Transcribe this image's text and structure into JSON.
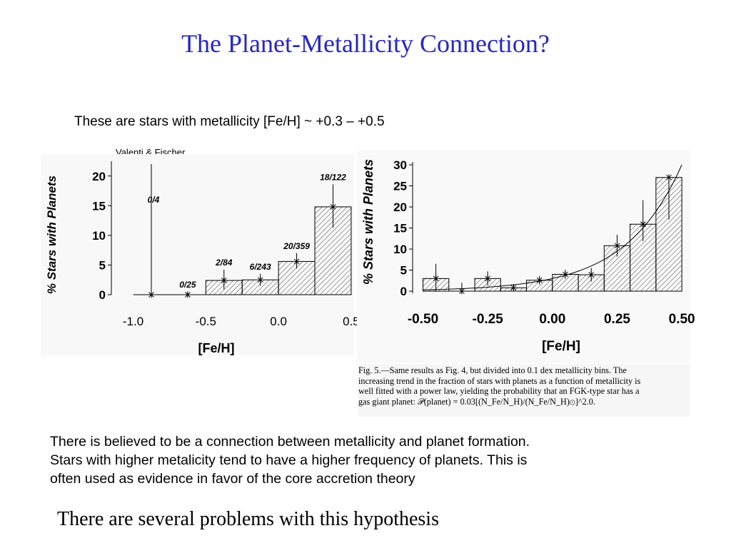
{
  "slide": {
    "title": "The Planet-Metallicity Connection?",
    "subtitle": "These are stars with metallicity [Fe/H] ~ +0.3 – +0.5",
    "source": "Valenti & Fischer",
    "body_lines": [
      "There is believed to be a connection between metallicity and planet formation.",
      "Stars with higher metalicity tend to have a higher frequency of planets. This is",
      "often used as evidence in favor of the core accretion theory"
    ],
    "closing": "There are several problems with this hypothesis",
    "caption_lines": [
      "Fig. 5.—Same results as Fig. 4, but divided into 0.1 dex metallicity bins. The",
      "increasing trend in the fraction of stars with planets as a function of metallicity is",
      "well fitted with a power law, yielding the probability that an FGK-type star has a",
      "gas giant planet: 𝒫(planet) = 0.03[(N_Fe/N_H)/(N_Fe/N_H)⊙]^2.0."
    ],
    "colors": {
      "title": "#2626c8",
      "text": "#000000"
    }
  },
  "chart_data": [
    {
      "type": "bar",
      "xlabel": "[Fe/H]",
      "ylabel": "% Stars with Planets",
      "xlim": [
        -1.15,
        0.52
      ],
      "ylim": [
        0,
        22
      ],
      "xticks": [
        "-1.0",
        "-0.5",
        "0.0",
        "0.5"
      ],
      "xtick_values": [
        -1.0,
        -0.5,
        0.0,
        0.5
      ],
      "yticks": [
        "0",
        "5",
        "10",
        "15",
        "20"
      ],
      "ytick_values": [
        0,
        5,
        10,
        15,
        20
      ],
      "bins": [
        {
          "x0": -1.0,
          "x1": -0.75,
          "value": 0.0,
          "err_lo": 0,
          "err_hi": 22,
          "label": "0/4"
        },
        {
          "x0": -0.75,
          "x1": -0.5,
          "value": 0.0,
          "err_lo": 0,
          "err_hi": 0.5,
          "label": "0/25"
        },
        {
          "x0": -0.5,
          "x1": -0.25,
          "value": 2.4,
          "err_lo": 1.5,
          "err_hi": 1.8,
          "label": "2/84"
        },
        {
          "x0": -0.25,
          "x1": 0.0,
          "value": 2.5,
          "err_lo": 1.0,
          "err_hi": 1.0,
          "label": "6/243"
        },
        {
          "x0": 0.0,
          "x1": 0.25,
          "value": 5.6,
          "err_lo": 1.2,
          "err_hi": 1.4,
          "label": "20/359"
        },
        {
          "x0": 0.25,
          "x1": 0.5,
          "value": 14.8,
          "err_lo": 3.5,
          "err_hi": 3.8,
          "label": "18/122"
        }
      ]
    },
    {
      "type": "bar",
      "xlabel": "[Fe/H]",
      "ylabel": "% Stars with Planets",
      "xlim": [
        -0.54,
        0.53
      ],
      "ylim": [
        -0.5,
        30
      ],
      "xticks": [
        "-0.50",
        "-0.25",
        "0.00",
        "0.25",
        "0.50"
      ],
      "xtick_values": [
        -0.5,
        -0.25,
        0.0,
        0.25,
        0.5
      ],
      "yticks": [
        "0",
        "5",
        "10",
        "15",
        "20",
        "25",
        "30"
      ],
      "ytick_values": [
        0,
        5,
        10,
        15,
        20,
        25,
        30
      ],
      "bins": [
        {
          "x0": -0.5,
          "x1": -0.4,
          "value": 3.0,
          "err_lo": 3.0,
          "err_hi": 3.5
        },
        {
          "x0": -0.4,
          "x1": -0.3,
          "value": 0.0,
          "err_lo": 0,
          "err_hi": 2.0
        },
        {
          "x0": -0.3,
          "x1": -0.2,
          "value": 3.0,
          "err_lo": 1.7,
          "err_hi": 1.7
        },
        {
          "x0": -0.2,
          "x1": -0.1,
          "value": 0.8,
          "err_lo": 0.6,
          "err_hi": 0.9
        },
        {
          "x0": -0.1,
          "x1": 0.0,
          "value": 2.6,
          "err_lo": 1.0,
          "err_hi": 1.0
        },
        {
          "x0": 0.0,
          "x1": 0.1,
          "value": 4.0,
          "err_lo": 1.1,
          "err_hi": 1.1
        },
        {
          "x0": 0.1,
          "x1": 0.2,
          "value": 3.9,
          "err_lo": 1.6,
          "err_hi": 1.6
        },
        {
          "x0": 0.2,
          "x1": 0.3,
          "value": 10.8,
          "err_lo": 2.6,
          "err_hi": 2.6
        },
        {
          "x0": 0.3,
          "x1": 0.4,
          "value": 15.9,
          "err_lo": 4.0,
          "err_hi": 5.7
        },
        {
          "x0": 0.4,
          "x1": 0.5,
          "value": 27.0,
          "err_lo": 10.0,
          "err_hi": 0.0
        }
      ],
      "fit": {
        "coef": 3.0,
        "exponent": 2.0
      }
    }
  ]
}
